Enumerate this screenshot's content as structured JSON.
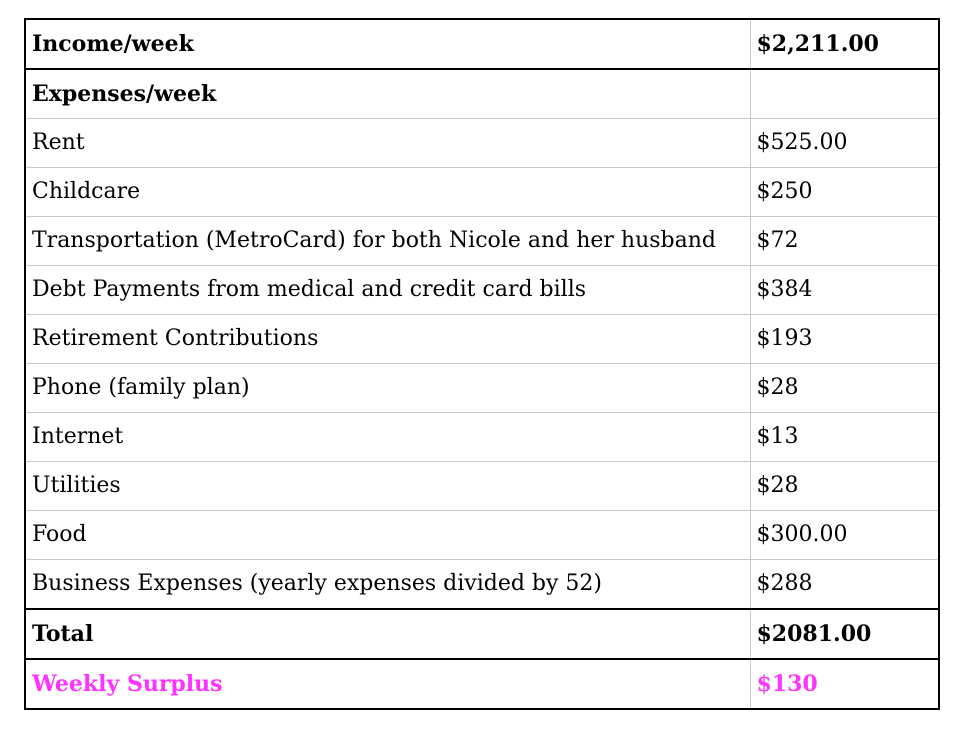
{
  "colors": {
    "surplus": "#ff33ff",
    "border_strong": "#000000",
    "border_light": "#c8c8c8"
  },
  "table": {
    "income": {
      "label": "Income/week",
      "value": "$2,211.00"
    },
    "expenses_heading": {
      "label": "Expenses/week",
      "value": ""
    },
    "expenses": [
      {
        "label": "Rent",
        "value": "$525.00"
      },
      {
        "label": "Childcare",
        "value": "$250"
      },
      {
        "label": "Transportation (MetroCard) for both Nicole and her husband",
        "value": "$72"
      },
      {
        "label": "Debt Payments from medical and credit card bills",
        "value": "$384"
      },
      {
        "label": "Retirement Contributions",
        "value": "$193"
      },
      {
        "label": "Phone (family plan)",
        "value": "$28"
      },
      {
        "label": "Internet",
        "value": "$13"
      },
      {
        "label": "Utilities",
        "value": "$28"
      },
      {
        "label": "Food",
        "value": "$300.00"
      },
      {
        "label": "Business Expenses (yearly expenses divided by 52)",
        "value": "$288"
      }
    ],
    "total": {
      "label": "Total",
      "value": "$2081.00"
    },
    "surplus": {
      "label": "Weekly Surplus",
      "value": "$130"
    }
  }
}
